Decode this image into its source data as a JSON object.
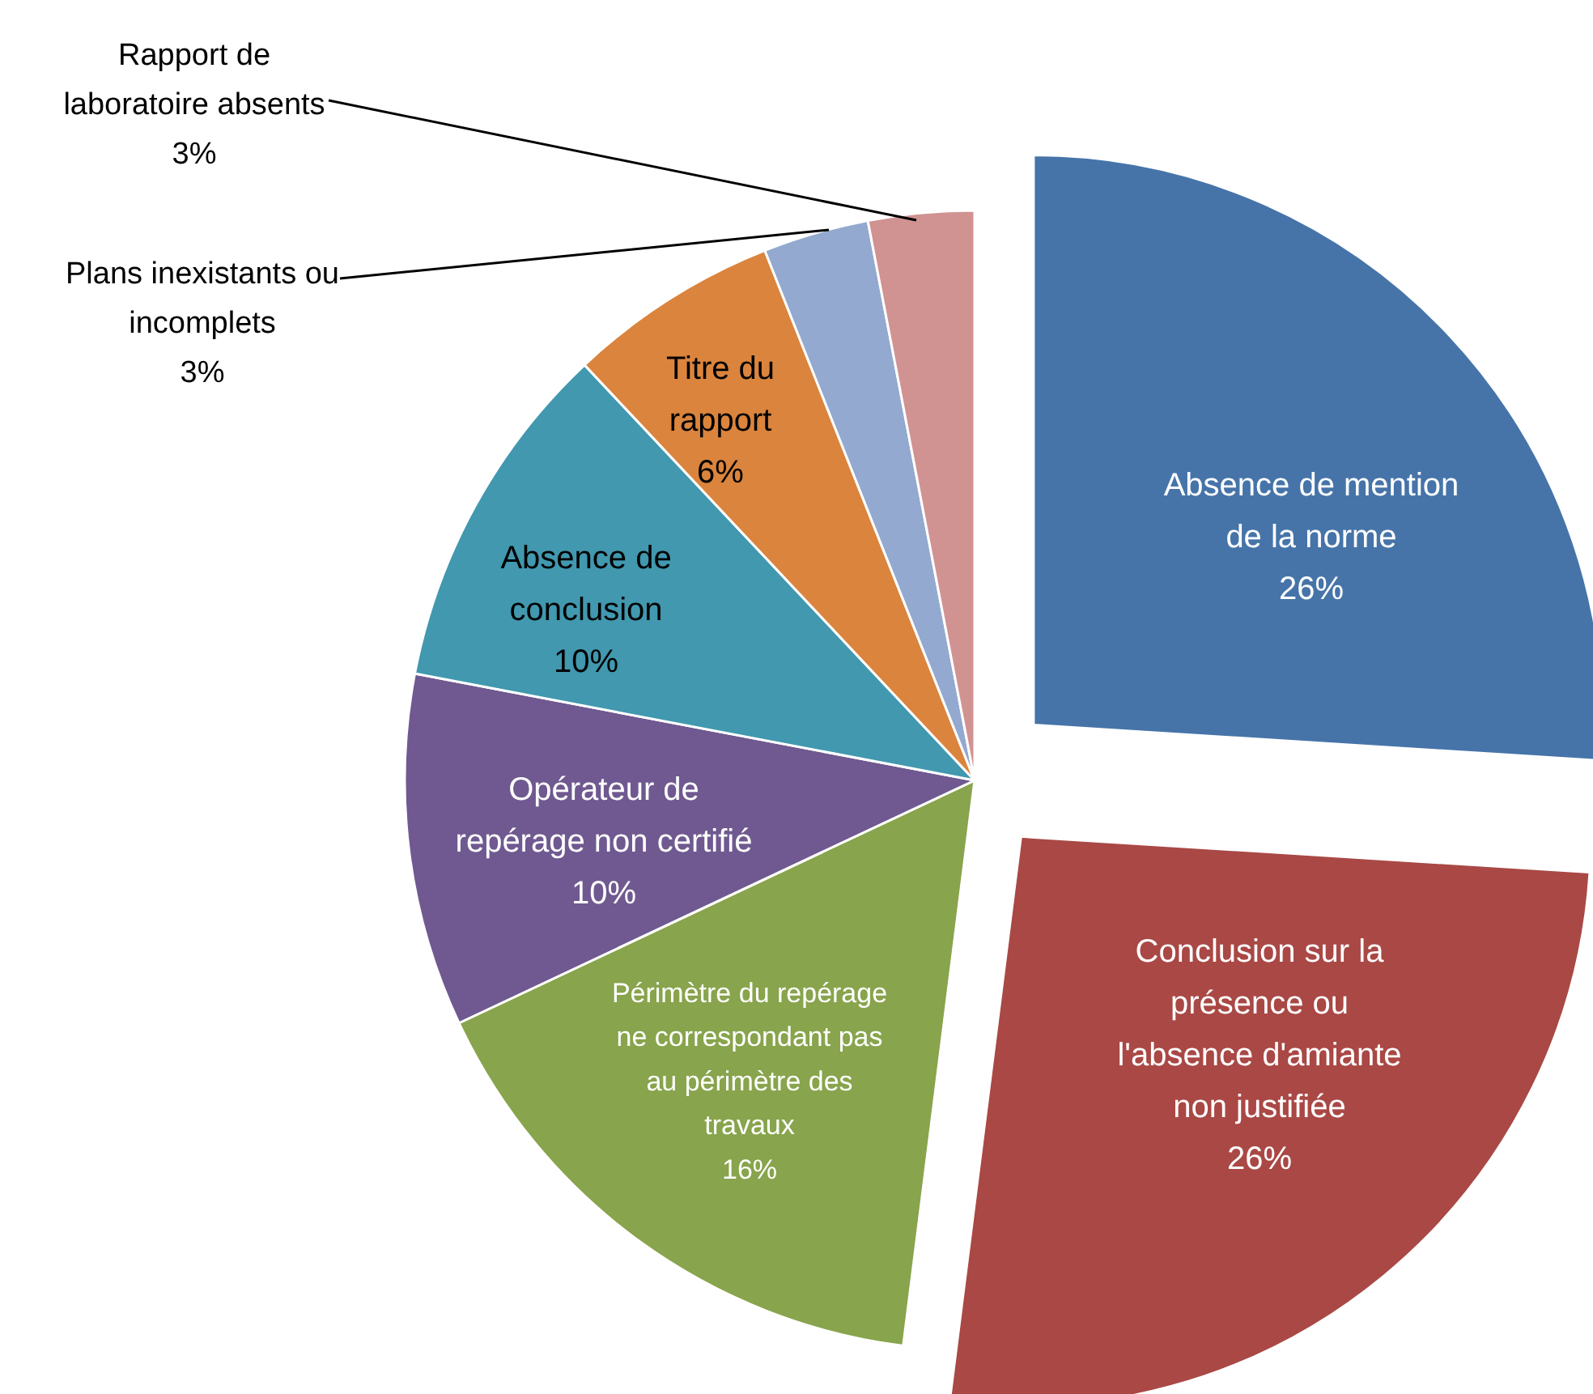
{
  "chart_data": {
    "type": "pie",
    "categories": [
      "Absence de mention de la norme",
      "Conclusion sur la présence ou l'absence d'amiante non justifiée",
      "Périmètre du repérage ne correspondant pas au périmètre des travaux",
      "Opérateur de repérage non certifié",
      "Absence de conclusion",
      "Titre du rapport",
      "Plans inexistants ou incomplets",
      "Rapport de laboratoire absents"
    ],
    "values": [
      26,
      26,
      16,
      10,
      10,
      6,
      3,
      3
    ],
    "value_labels": [
      "26%",
      "26%",
      "16%",
      "10%",
      "10%",
      "6%",
      "3%",
      "3%"
    ],
    "colors": [
      "#4674a9",
      "#a94845",
      "#88a44c",
      "#6f5990",
      "#4198af",
      "#db843d",
      "#93a9cf",
      "#d09392"
    ]
  }
}
